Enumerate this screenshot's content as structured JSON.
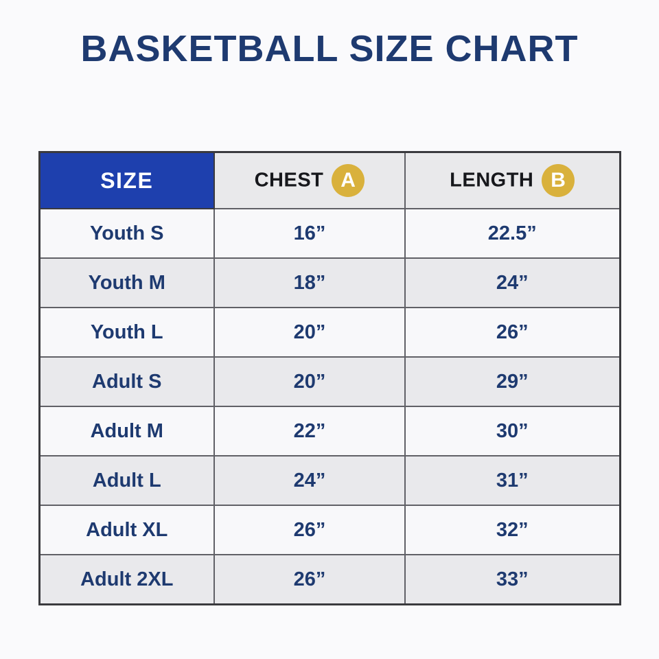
{
  "title": "BASKETBALL SIZE CHART",
  "table": {
    "headers": {
      "size": "SIZE",
      "chest": "CHEST",
      "chest_badge": "A",
      "length": "LENGTH",
      "length_badge": "B"
    },
    "rows": [
      {
        "size": "Youth S",
        "chest": "16”",
        "length": "22.5”"
      },
      {
        "size": "Youth M",
        "chest": "18”",
        "length": "24”"
      },
      {
        "size": "Youth L",
        "chest": "20”",
        "length": "26”"
      },
      {
        "size": "Adult S",
        "chest": "20”",
        "length": "29”"
      },
      {
        "size": "Adult M",
        "chest": "22”",
        "length": "30”"
      },
      {
        "size": "Adult L",
        "chest": "24”",
        "length": "31”"
      },
      {
        "size": "Adult XL",
        "chest": "26”",
        "length": "32”"
      },
      {
        "size": "Adult 2XL",
        "chest": "26”",
        "length": "33”"
      }
    ]
  },
  "colors": {
    "page_background": "#fafafc",
    "title_navy": "#1e3a70",
    "size_header_blue": "#1e40ae",
    "header_gray": "#e9e9eb",
    "badge_gold": "#d9b13c",
    "cell_text_navy": "#1e3a70",
    "row_white": "#f8f8fa",
    "row_alt_gray": "#e9e9ec",
    "border_gray": "#606066"
  },
  "chart_data": {
    "type": "table",
    "title": "BASKETBALL SIZE CHART",
    "columns": [
      "SIZE",
      "CHEST (A)",
      "LENGTH (B)"
    ],
    "units": "inches",
    "rows": [
      [
        "Youth S",
        16,
        22.5
      ],
      [
        "Youth M",
        18,
        24
      ],
      [
        "Youth L",
        20,
        26
      ],
      [
        "Adult S",
        20,
        29
      ],
      [
        "Adult M",
        22,
        30
      ],
      [
        "Adult L",
        24,
        31
      ],
      [
        "Adult XL",
        26,
        32
      ],
      [
        "Adult 2XL",
        26,
        33
      ]
    ]
  }
}
